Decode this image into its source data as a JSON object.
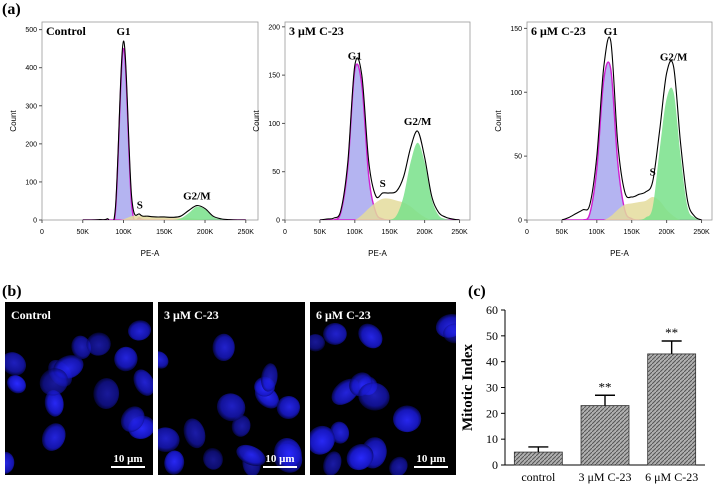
{
  "panel_labels": [
    "(a)",
    "(b)",
    "(c)"
  ],
  "chart_data": [
    {
      "type": "area",
      "title": "Control",
      "xlabel": "PE-A",
      "ylabel": "Count",
      "x": [
        50000,
        60000,
        70000,
        80000,
        90000,
        100000,
        110000,
        120000,
        130000,
        140000,
        150000,
        160000,
        170000,
        180000,
        190000,
        200000,
        210000,
        220000,
        230000,
        240000,
        250000
      ],
      "xlim": [
        0,
        265000
      ],
      "xticks": [
        0,
        {
          "value": 50000,
          "label": "50K"
        },
        {
          "value": 100000,
          "label": "100K"
        },
        {
          "value": 150000,
          "label": "150K"
        },
        {
          "value": 200000,
          "label": "200K"
        },
        {
          "value": 250000,
          "label": "250K"
        }
      ],
      "ylim": [
        0,
        520
      ],
      "yticks": [
        0,
        100,
        200,
        300,
        400,
        500
      ],
      "peak_labels": [
        "G1",
        "S",
        "G2/M"
      ],
      "series": [
        {
          "color": "#000000",
          "values": [
            0,
            0,
            1,
            3,
            30,
            470,
            60,
            15,
            10,
            8,
            8,
            7,
            10,
            25,
            38,
            30,
            10,
            3,
            1,
            0,
            0
          ]
        },
        {
          "color": "#a7a7ee",
          "values": [
            0,
            0,
            0,
            0,
            20,
            450,
            40,
            5,
            0,
            0,
            0,
            0,
            0,
            0,
            0,
            0,
            0,
            0,
            0,
            0,
            0
          ]
        },
        {
          "color": "#e4dc9c",
          "values": [
            0,
            0,
            0,
            0,
            0,
            2,
            10,
            12,
            10,
            8,
            8,
            7,
            6,
            5,
            3,
            1,
            0,
            0,
            0,
            0,
            0
          ]
        },
        {
          "color": "#78e08a",
          "values": [
            0,
            0,
            0,
            0,
            0,
            0,
            0,
            0,
            0,
            0,
            0,
            0,
            4,
            18,
            35,
            28,
            8,
            2,
            0,
            0,
            0
          ]
        }
      ]
    },
    {
      "type": "area",
      "title": "3 μM C-23",
      "xlabel": "PE-A",
      "ylabel": "Count",
      "x": [
        50000,
        60000,
        70000,
        80000,
        90000,
        100000,
        110000,
        120000,
        130000,
        140000,
        150000,
        160000,
        170000,
        180000,
        190000,
        200000,
        210000,
        220000,
        230000,
        240000,
        250000
      ],
      "xlim": [
        0,
        265000
      ],
      "xticks": [
        0,
        {
          "value": 50000,
          "label": "50K"
        },
        {
          "value": 100000,
          "label": "100K"
        },
        {
          "value": 150000,
          "label": "150K"
        },
        {
          "value": 200000,
          "label": "200K"
        },
        {
          "value": 250000,
          "label": "250K"
        }
      ],
      "ylim": [
        0,
        205
      ],
      "yticks": [
        0,
        50,
        100,
        150,
        200
      ],
      "peak_labels": [
        "G1",
        "S",
        "G2/M"
      ],
      "series": [
        {
          "color": "#000000",
          "values": [
            0,
            1,
            2,
            10,
            60,
            160,
            150,
            60,
            25,
            28,
            28,
            30,
            45,
            75,
            92,
            65,
            25,
            8,
            3,
            1,
            0
          ]
        },
        {
          "color": "#a7a7ee",
          "values": [
            0,
            0,
            0,
            8,
            55,
            155,
            140,
            45,
            8,
            1,
            0,
            0,
            0,
            0,
            0,
            0,
            0,
            0,
            0,
            0,
            0
          ]
        },
        {
          "color": "#e4dc9c",
          "values": [
            0,
            0,
            0,
            0,
            0,
            0,
            5,
            12,
            18,
            22,
            22,
            20,
            18,
            14,
            8,
            3,
            0,
            0,
            0,
            0,
            0
          ]
        },
        {
          "color": "#78e08a",
          "values": [
            0,
            0,
            0,
            0,
            0,
            0,
            0,
            0,
            0,
            0,
            0,
            5,
            25,
            60,
            80,
            60,
            22,
            5,
            1,
            0,
            0
          ]
        }
      ]
    },
    {
      "type": "area",
      "title": "6 μM C-23",
      "xlabel": "PE-A",
      "ylabel": "Count",
      "x": [
        50000,
        60000,
        70000,
        80000,
        90000,
        100000,
        110000,
        120000,
        130000,
        140000,
        150000,
        160000,
        170000,
        180000,
        190000,
        200000,
        210000,
        220000,
        230000,
        240000,
        250000
      ],
      "xlim": [
        0,
        265000
      ],
      "xticks": [
        0,
        {
          "value": 50000,
          "label": "50K"
        },
        {
          "value": 100000,
          "label": "100K"
        },
        {
          "value": 150000,
          "label": "150K"
        },
        {
          "value": 200000,
          "label": "200K"
        },
        {
          "value": 250000,
          "label": "250K"
        }
      ],
      "ylim": [
        0,
        155
      ],
      "yticks": [
        0,
        50,
        100,
        150
      ],
      "peak_labels": [
        "G1",
        "S",
        "G2/M"
      ],
      "series": [
        {
          "color": "#000000",
          "values": [
            0,
            2,
            5,
            8,
            12,
            50,
            120,
            140,
            60,
            22,
            18,
            20,
            22,
            30,
            70,
            115,
            120,
            60,
            15,
            3,
            0
          ]
        },
        {
          "color": "#a7a7ee",
          "values": [
            0,
            0,
            0,
            0,
            5,
            40,
            110,
            118,
            45,
            8,
            1,
            0,
            0,
            0,
            0,
            0,
            0,
            0,
            0,
            0,
            0
          ]
        },
        {
          "color": "#e4dc9c",
          "values": [
            0,
            0,
            0,
            0,
            0,
            0,
            0,
            3,
            8,
            12,
            13,
            14,
            15,
            18,
            15,
            8,
            3,
            0,
            0,
            0,
            0
          ]
        },
        {
          "color": "#78e08a",
          "values": [
            0,
            0,
            0,
            0,
            0,
            0,
            0,
            0,
            0,
            0,
            0,
            0,
            2,
            10,
            55,
            95,
            100,
            50,
            10,
            2,
            0
          ]
        }
      ]
    },
    {
      "type": "bar",
      "ylabel": "Mitotic Index",
      "categories": [
        "control",
        "3 μM C-23",
        "6 μM C-23"
      ],
      "values": [
        5,
        23,
        43
      ],
      "errors": [
        2,
        4,
        5
      ],
      "annotations": [
        null,
        "**",
        "**"
      ],
      "color": "#8a8a8a",
      "ylim": [
        0,
        60
      ],
      "yticks": [
        0,
        10,
        20,
        30,
        40,
        50,
        60
      ]
    }
  ],
  "images": [
    {
      "label": "Control",
      "scale_bar": "10 μm"
    },
    {
      "label": "3 μM C-23",
      "scale_bar": "10 μm"
    },
    {
      "label": "6 μM C-23",
      "scale_bar": "10 μm"
    }
  ]
}
